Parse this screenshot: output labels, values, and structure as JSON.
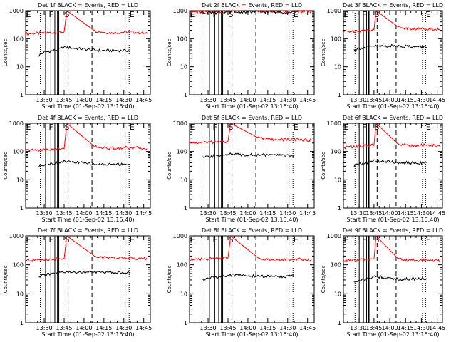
{
  "chart_data": [
    {
      "type": "line",
      "title": "Det 1f BLACK = Events, RED = LLD",
      "xlabel": "Start Time (01-Sep-02 13:15:40)",
      "ylabel": "Counts/sec",
      "yscale": "log",
      "ylim": [
        1,
        1000
      ],
      "x_ticks": [
        "13:30",
        "13:45",
        "14:00",
        "14:15",
        "14:30",
        "14:45"
      ],
      "y_ticks": [
        "1",
        "10",
        "100",
        "1000"
      ],
      "markers": [
        {
          "label": "E",
          "time": "13:16"
        },
        {
          "label": "F",
          "time": "13:33"
        },
        {
          "label": "S",
          "time": "13:45"
        },
        {
          "label": "E",
          "time": "14:34"
        }
      ],
      "series": [
        {
          "color": "#ff0000",
          "x": [
            "13:16",
            "13:30",
            "13:45",
            "13:47",
            "14:08",
            "14:20",
            "14:35",
            "14:48"
          ],
          "y": [
            150,
            160,
            175,
            1000,
            190,
            160,
            175,
            150
          ]
        },
        {
          "color": "#000000",
          "x": [
            "13:26",
            "13:30",
            "13:40",
            "13:45",
            "14:10",
            "14:35"
          ],
          "y": [
            25,
            33,
            40,
            50,
            38,
            38
          ]
        }
      ]
    },
    {
      "type": "line",
      "title": "Det 2f BLACK = Events, RED = LLD",
      "xlabel": "Start Time (01-Sep-02 13:15:40)",
      "ylabel": "Counts/sec",
      "yscale": "log",
      "ylim": [
        1,
        1000
      ],
      "x_ticks": [
        "13:30",
        "13:45",
        "14:00",
        "14:15",
        "14:30",
        "14:45"
      ],
      "y_ticks": [
        "1",
        "10",
        "100",
        "1000"
      ],
      "markers": [
        {
          "label": "E",
          "time": "13:16"
        },
        {
          "label": "F",
          "time": "13:33"
        },
        {
          "label": "S",
          "time": "13:45"
        },
        {
          "label": "E",
          "time": "14:34"
        }
      ],
      "series": [
        {
          "color": "#ff0000",
          "x": [
            "13:16",
            "13:30",
            "13:45",
            "13:47",
            "14:08",
            "14:20",
            "14:35",
            "14:48"
          ],
          "y": [
            900,
            900,
            900,
            1000,
            950,
            950,
            950,
            950
          ]
        },
        {
          "color": "#000000",
          "x": [
            "13:25",
            "13:30",
            "13:40",
            "13:45",
            "14:10",
            "14:35"
          ],
          "y": [
            850,
            870,
            880,
            900,
            900,
            900
          ]
        }
      ]
    },
    {
      "type": "line",
      "title": "Det 3f BLACK = Events, RED = LLD",
      "xlabel": "Start Time (01-Sep-02 13:15:40)",
      "ylabel": "Counts/sec",
      "yscale": "log",
      "ylim": [
        1,
        1000
      ],
      "x_ticks": [
        "13:30",
        "13:45",
        "14:00",
        "14:15",
        "14:30",
        "14:45"
      ],
      "y_ticks": [
        "1",
        "10",
        "100",
        "1000"
      ],
      "markers": [
        {
          "label": "E",
          "time": "13:16"
        },
        {
          "label": "F",
          "time": "13:33"
        },
        {
          "label": "S",
          "time": "13:45"
        },
        {
          "label": "E",
          "time": "14:34"
        }
      ],
      "series": [
        {
          "color": "#ff0000",
          "x": [
            "13:16",
            "13:30",
            "13:45",
            "13:47",
            "14:08",
            "14:20",
            "14:35",
            "14:48"
          ],
          "y": [
            180,
            190,
            210,
            1000,
            260,
            220,
            230,
            210
          ]
        },
        {
          "color": "#000000",
          "x": [
            "13:26",
            "13:30",
            "13:40",
            "13:45",
            "14:10",
            "14:35"
          ],
          "y": [
            40,
            45,
            50,
            55,
            55,
            50
          ]
        }
      ]
    },
    {
      "type": "line",
      "title": "Det 4f BLACK = Events, RED = LLD",
      "xlabel": "Start Time (01-Sep-02 13:15:40)",
      "ylabel": "Counts/sec",
      "yscale": "log",
      "ylim": [
        1,
        1000
      ],
      "x_ticks": [
        "13:30",
        "13:45",
        "14:00",
        "14:15",
        "14:30",
        "14:45"
      ],
      "y_ticks": [
        "1",
        "10",
        "100",
        "1000"
      ],
      "markers": [
        {
          "label": "E",
          "time": "13:16"
        },
        {
          "label": "F",
          "time": "13:33"
        },
        {
          "label": "S",
          "time": "13:45"
        },
        {
          "label": "E",
          "time": "14:34"
        }
      ],
      "series": [
        {
          "color": "#ff0000",
          "x": [
            "13:16",
            "13:30",
            "13:45",
            "13:47",
            "14:08",
            "14:20",
            "14:35",
            "14:48"
          ],
          "y": [
            110,
            115,
            125,
            1000,
            150,
            130,
            140,
            125
          ]
        },
        {
          "color": "#000000",
          "x": [
            "13:26",
            "13:30",
            "13:40",
            "13:45",
            "14:10",
            "14:35"
          ],
          "y": [
            30,
            35,
            40,
            45,
            35,
            36
          ]
        }
      ]
    },
    {
      "type": "line",
      "title": "Det 5f BLACK = Events, RED = LLD",
      "xlabel": "Start Time (01-Sep-02 13:15:40)",
      "ylabel": "Counts/sec",
      "yscale": "log",
      "ylim": [
        1,
        1000
      ],
      "x_ticks": [
        "13:30",
        "13:45",
        "14:00",
        "14:15",
        "14:30",
        "14:45"
      ],
      "y_ticks": [
        "1",
        "10",
        "100",
        "1000"
      ],
      "markers": [
        {
          "label": "E",
          "time": "13:16"
        },
        {
          "label": "F",
          "time": "13:33"
        },
        {
          "label": "S",
          "time": "13:45"
        },
        {
          "label": "E",
          "time": "14:34"
        }
      ],
      "series": [
        {
          "color": "#ff0000",
          "x": [
            "13:16",
            "13:30",
            "13:45",
            "13:47",
            "14:08",
            "14:20",
            "14:35",
            "14:48"
          ],
          "y": [
            200,
            210,
            230,
            1000,
            300,
            260,
            270,
            250
          ]
        },
        {
          "color": "#000000",
          "x": [
            "13:26",
            "13:30",
            "13:40",
            "13:45",
            "14:10",
            "14:35"
          ],
          "y": [
            60,
            65,
            75,
            80,
            75,
            72
          ]
        }
      ]
    },
    {
      "type": "line",
      "title": "Det 6f BLACK = Events, RED = LLD",
      "xlabel": "Start Time (01-Sep-02 13:15:40)",
      "ylabel": "Counts/sec",
      "yscale": "log",
      "ylim": [
        1,
        1000
      ],
      "x_ticks": [
        "13:30",
        "13:45",
        "14:00",
        "14:15",
        "14:30",
        "14:45"
      ],
      "y_ticks": [
        "1",
        "10",
        "100",
        "1000"
      ],
      "markers": [
        {
          "label": "E",
          "time": "13:16"
        },
        {
          "label": "F",
          "time": "13:33"
        },
        {
          "label": "S",
          "time": "13:45"
        },
        {
          "label": "E",
          "time": "14:34"
        }
      ],
      "series": [
        {
          "color": "#ff0000",
          "x": [
            "13:16",
            "13:30",
            "13:45",
            "13:47",
            "14:08",
            "14:20",
            "14:35",
            "14:48"
          ],
          "y": [
            140,
            150,
            170,
            1000,
            180,
            160,
            170,
            150
          ]
        },
        {
          "color": "#000000",
          "x": [
            "13:26",
            "13:30",
            "13:40",
            "13:45",
            "14:10",
            "14:35"
          ],
          "y": [
            30,
            35,
            40,
            48,
            40,
            40
          ]
        }
      ]
    },
    {
      "type": "line",
      "title": "Det 7f BLACK = Events, RED = LLD",
      "xlabel": "Start Time (01-Sep-02 13:15:40)",
      "ylabel": "Counts/sec",
      "yscale": "log",
      "ylim": [
        1,
        1000
      ],
      "x_ticks": [
        "13:30",
        "13:45",
        "14:00",
        "14:15",
        "14:30",
        "14:45"
      ],
      "y_ticks": [
        "1",
        "10",
        "100",
        "1000"
      ],
      "markers": [
        {
          "label": "E",
          "time": "13:16"
        },
        {
          "label": "F",
          "time": "13:33"
        },
        {
          "label": "S",
          "time": "13:45"
        },
        {
          "label": "E",
          "time": "14:34"
        }
      ],
      "series": [
        {
          "color": "#ff0000",
          "x": [
            "13:16",
            "13:30",
            "13:45",
            "13:47",
            "14:08",
            "14:20",
            "14:35",
            "14:48"
          ],
          "y": [
            140,
            150,
            165,
            1000,
            200,
            170,
            175,
            160
          ]
        },
        {
          "color": "#000000",
          "x": [
            "13:26",
            "13:30",
            "13:40",
            "13:45",
            "14:10",
            "14:35"
          ],
          "y": [
            40,
            45,
            50,
            55,
            55,
            55
          ]
        }
      ]
    },
    {
      "type": "line",
      "title": "Det 8f BLACK = Events, RED = LLD",
      "xlabel": "Start Time (01-Sep-02 13:15:40)",
      "ylabel": "Counts/sec",
      "yscale": "log",
      "ylim": [
        1,
        1000
      ],
      "x_ticks": [
        "13:30",
        "13:45",
        "14:00",
        "14:15",
        "14:30",
        "14:45"
      ],
      "y_ticks": [
        "1",
        "10",
        "100",
        "1000"
      ],
      "markers": [
        {
          "label": "E",
          "time": "13:16"
        },
        {
          "label": "F",
          "time": "13:33"
        },
        {
          "label": "S",
          "time": "13:45"
        },
        {
          "label": "E",
          "time": "14:34"
        }
      ],
      "series": [
        {
          "color": "#ff0000",
          "x": [
            "13:16",
            "13:30",
            "13:45",
            "13:47",
            "14:08",
            "14:20",
            "14:35",
            "14:48"
          ],
          "y": [
            150,
            160,
            175,
            1000,
            170,
            150,
            160,
            145
          ]
        },
        {
          "color": "#000000",
          "x": [
            "13:26",
            "13:30",
            "13:40",
            "13:45",
            "14:10",
            "14:35"
          ],
          "y": [
            30,
            35,
            40,
            45,
            40,
            40
          ]
        }
      ]
    },
    {
      "type": "line",
      "title": "Det 9f BLACK = Events, RED = LLD",
      "xlabel": "Start Time (01-Sep-02 13:15:40)",
      "ylabel": "Counts/sec",
      "yscale": "log",
      "ylim": [
        1,
        1000
      ],
      "x_ticks": [
        "13:30",
        "13:45",
        "14:00",
        "14:15",
        "14:30",
        "14:45"
      ],
      "y_ticks": [
        "1",
        "10",
        "100",
        "1000"
      ],
      "markers": [
        {
          "label": "E",
          "time": "13:16"
        },
        {
          "label": "F",
          "time": "13:33"
        },
        {
          "label": "S",
          "time": "13:45"
        },
        {
          "label": "E",
          "time": "14:34"
        }
      ],
      "series": [
        {
          "color": "#ff0000",
          "x": [
            "13:16",
            "13:30",
            "13:45",
            "13:47",
            "14:08",
            "14:20",
            "14:35",
            "14:48"
          ],
          "y": [
            140,
            145,
            160,
            1000,
            160,
            140,
            150,
            135
          ]
        },
        {
          "color": "#000000",
          "x": [
            "13:26",
            "13:30",
            "13:40",
            "13:45",
            "14:10",
            "14:35"
          ],
          "y": [
            25,
            28,
            33,
            40,
            32,
            34
          ]
        }
      ]
    }
  ]
}
